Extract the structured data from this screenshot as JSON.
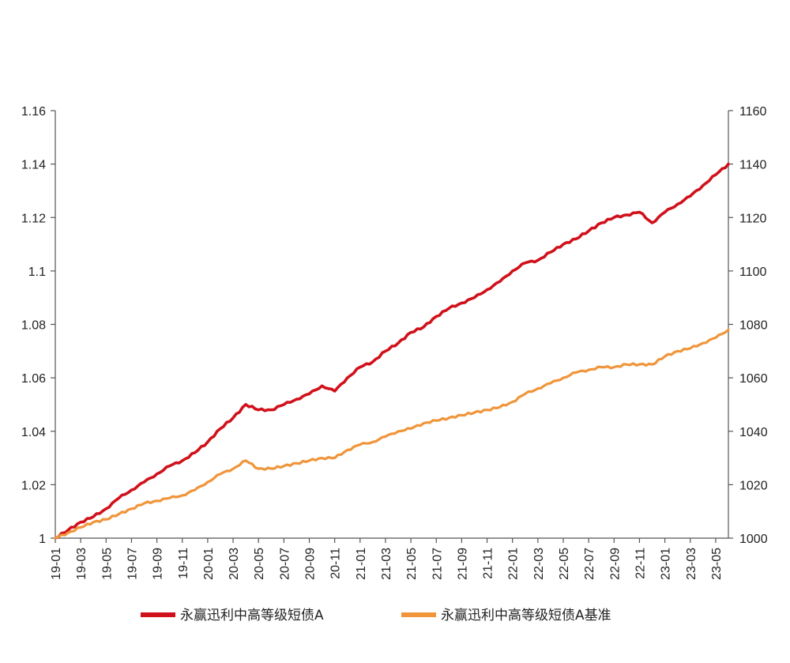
{
  "chart_data": {
    "type": "line",
    "title": "",
    "xlabel": "",
    "ylabel": "",
    "y_left_ticks": [
      "1",
      "1.02",
      "1.04",
      "1.06",
      "1.08",
      "1.1",
      "1.12",
      "1.14",
      "1.16"
    ],
    "y_right_ticks": [
      "1000",
      "1020",
      "1040",
      "1060",
      "1080",
      "1100",
      "1120",
      "1140",
      "1160"
    ],
    "y_left_range": [
      1,
      1.16
    ],
    "y_right_range": [
      1000,
      1160
    ],
    "x_ticks": [
      "19-01",
      "19-03",
      "19-05",
      "19-07",
      "19-09",
      "19-11",
      "20-01",
      "20-03",
      "20-05",
      "20-07",
      "20-09",
      "20-11",
      "21-01",
      "21-03",
      "21-05",
      "21-07",
      "21-09",
      "21-11",
      "22-01",
      "22-03",
      "22-05",
      "22-07",
      "22-09",
      "22-11",
      "23-01",
      "23-03",
      "23-05"
    ],
    "x_months": [
      "2019-01",
      "2019-02",
      "2019-03",
      "2019-04",
      "2019-05",
      "2019-06",
      "2019-07",
      "2019-08",
      "2019-09",
      "2019-10",
      "2019-11",
      "2019-12",
      "2020-01",
      "2020-02",
      "2020-03",
      "2020-04",
      "2020-05",
      "2020-06",
      "2020-07",
      "2020-08",
      "2020-09",
      "2020-10",
      "2020-11",
      "2020-12",
      "2021-01",
      "2021-02",
      "2021-03",
      "2021-04",
      "2021-05",
      "2021-06",
      "2021-07",
      "2021-08",
      "2021-09",
      "2021-10",
      "2021-11",
      "2021-12",
      "2022-01",
      "2022-02",
      "2022-03",
      "2022-04",
      "2022-05",
      "2022-06",
      "2022-07",
      "2022-08",
      "2022-09",
      "2022-10",
      "2022-11",
      "2022-12",
      "2023-01",
      "2023-02",
      "2023-03",
      "2023-04",
      "2023-05",
      "2023-06"
    ],
    "grid": false,
    "legend_position": "bottom",
    "series": [
      {
        "name": "永赢迅利中高等级短债A",
        "color": "#d0111b",
        "axis": "left",
        "values": [
          1.0,
          1.003,
          1.006,
          1.008,
          1.011,
          1.015,
          1.018,
          1.021,
          1.024,
          1.027,
          1.029,
          1.032,
          1.036,
          1.041,
          1.045,
          1.05,
          1.048,
          1.048,
          1.05,
          1.052,
          1.054,
          1.057,
          1.055,
          1.06,
          1.064,
          1.066,
          1.07,
          1.073,
          1.077,
          1.079,
          1.083,
          1.086,
          1.088,
          1.09,
          1.093,
          1.096,
          1.1,
          1.103,
          1.104,
          1.107,
          1.11,
          1.112,
          1.115,
          1.118,
          1.12,
          1.121,
          1.122,
          1.118,
          1.122,
          1.125,
          1.128,
          1.132,
          1.136,
          1.14
        ]
      },
      {
        "name": "永赢迅利中高等级短债A基准",
        "color": "#f0953a",
        "axis": "right",
        "values": [
          1000,
          1002,
          1004,
          1006,
          1007,
          1009,
          1011,
          1013,
          1014,
          1015,
          1016,
          1018,
          1021,
          1024,
          1026,
          1029,
          1026,
          1026,
          1027,
          1028,
          1029,
          1030,
          1030,
          1033,
          1035,
          1036,
          1038,
          1040,
          1041,
          1043,
          1044,
          1045,
          1046,
          1047,
          1048,
          1049,
          1051,
          1054,
          1056,
          1058,
          1060,
          1062,
          1063,
          1064,
          1064,
          1065,
          1065,
          1065,
          1068,
          1070,
          1071,
          1073,
          1075,
          1078
        ]
      }
    ]
  }
}
